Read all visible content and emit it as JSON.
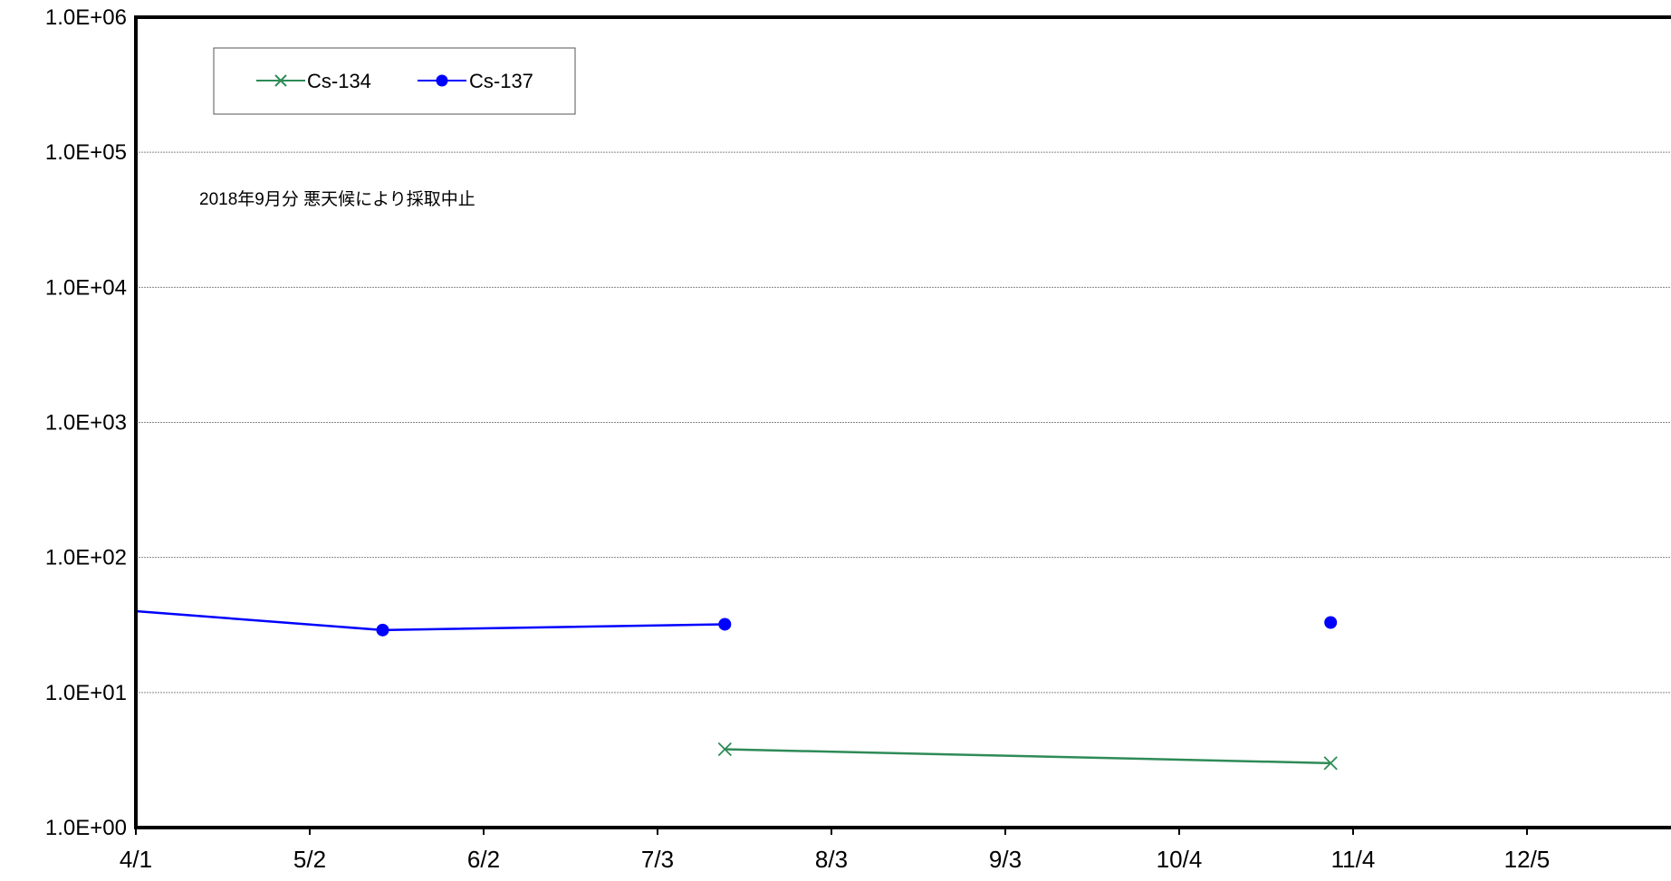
{
  "chart_data": {
    "type": "line",
    "y_scale": "log",
    "ylim": [
      1,
      1000000
    ],
    "y_ticks": [
      1,
      10,
      100,
      1000,
      10000,
      100000,
      1000000
    ],
    "y_tick_labels": [
      "1.0E+00",
      "1.0E+01",
      "1.0E+02",
      "1.0E+03",
      "1.0E+04",
      "1.0E+05",
      "1.0E+06"
    ],
    "x_axis": "date",
    "xlim": [
      "2018-04-01",
      "2018-12-31"
    ],
    "x_ticks": [
      "2018-04-01",
      "2018-05-02",
      "2018-06-02",
      "2018-07-03",
      "2018-08-03",
      "2018-09-03",
      "2018-10-04",
      "2018-11-04",
      "2018-12-05"
    ],
    "x_tick_labels": [
      "4/1",
      "5/2",
      "6/2",
      "7/3",
      "8/3",
      "9/3",
      "10/4",
      "11/4",
      "12/5"
    ],
    "grid": "horizontal",
    "legend_position": "top-left",
    "colors": {
      "cs134": "#2e8b57",
      "cs137": "#0000ff",
      "grid": "#888888",
      "frame": "#000000"
    },
    "annotation": "2018年9月分 悪天候により採取中止",
    "series": [
      {
        "name": "Cs-134",
        "color": "#2e8b57",
        "marker": "x",
        "points": [
          {
            "x": "2018-07-15",
            "y": 3.8
          },
          {
            "x": "2018-10-31",
            "y": 3.0
          }
        ]
      },
      {
        "name": "Cs-137",
        "color": "#0000ff",
        "marker": "circle",
        "points": [
          {
            "x": "2018-04-01",
            "y": 40
          },
          {
            "x": "2018-05-15",
            "y": 29
          },
          {
            "x": "2018-07-15",
            "y": 32
          },
          {
            "x": null,
            "y": null
          },
          {
            "x": "2018-10-31",
            "y": 33
          }
        ]
      }
    ]
  }
}
